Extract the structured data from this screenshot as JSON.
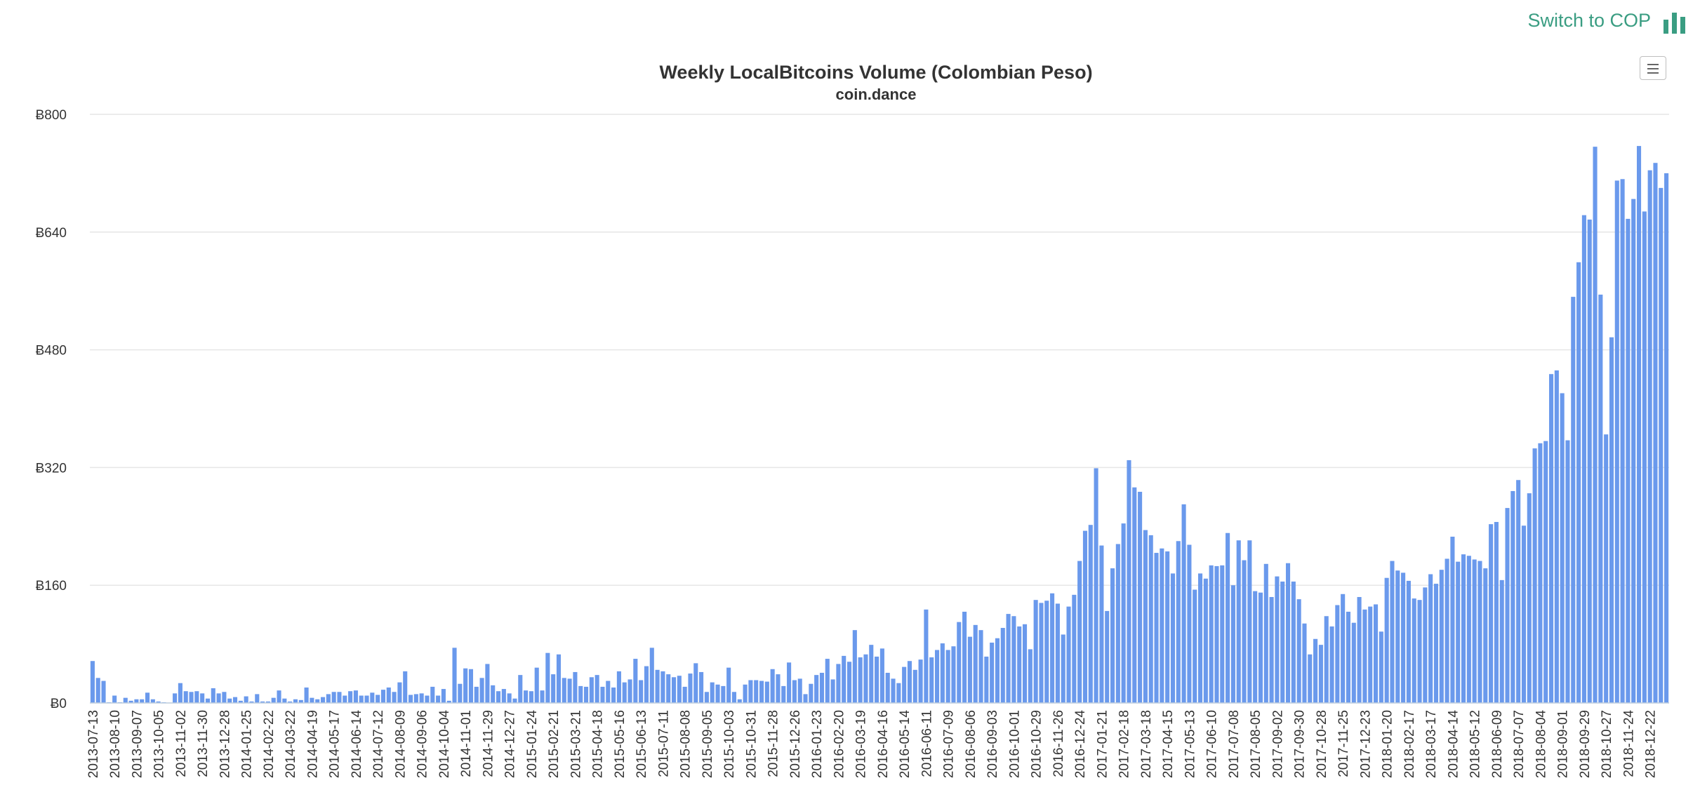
{
  "switch_link": {
    "label": "Switch to COP",
    "color": "#3a9d82"
  },
  "icons": {
    "switch": "bar-chart-icon",
    "menu": "hamburger-menu-icon"
  },
  "chart_data": {
    "type": "bar",
    "title": "Weekly LocalBitcoins Volume (Colombian Peso)",
    "subtitle": "coin.dance",
    "xlabel": "",
    "ylabel": "",
    "y_prefix": "Ƀ",
    "ylim": [
      0,
      800
    ],
    "yticks": [
      0,
      160,
      320,
      480,
      640,
      800
    ],
    "grid": true,
    "bar_color": "#6a99ec",
    "start_date": "2013-07-13",
    "step_days": 7,
    "tick_every": 4,
    "values": [
      57,
      34,
      30,
      1,
      10,
      1,
      7,
      3,
      5,
      5,
      14,
      5,
      2,
      1,
      0,
      13,
      27,
      16,
      15,
      16,
      13,
      6,
      20,
      13,
      15,
      6,
      8,
      3,
      9,
      2,
      12,
      2,
      2,
      7,
      17,
      6,
      2,
      5,
      4,
      21,
      7,
      5,
      8,
      12,
      15,
      15,
      10,
      16,
      17,
      10,
      10,
      14,
      11,
      18,
      21,
      15,
      28,
      43,
      11,
      12,
      13,
      10,
      22,
      10,
      19,
      3,
      75,
      26,
      47,
      46,
      22,
      34,
      53,
      24,
      16,
      19,
      13,
      6,
      38,
      17,
      16,
      48,
      17,
      68,
      39,
      66,
      34,
      33,
      42,
      23,
      22,
      35,
      38,
      22,
      30,
      21,
      43,
      28,
      32,
      60,
      31,
      50,
      75,
      45,
      43,
      39,
      35,
      37,
      22,
      40,
      54,
      42,
      15,
      28,
      25,
      23,
      48,
      15,
      5,
      25,
      31,
      31,
      30,
      29,
      46,
      39,
      23,
      55,
      31,
      33,
      12,
      26,
      38,
      41,
      60,
      32,
      53,
      64,
      56,
      99,
      62,
      66,
      79,
      63,
      74,
      41,
      33,
      27,
      49,
      57,
      45,
      59,
      127,
      62,
      72,
      81,
      72,
      77,
      110,
      124,
      90,
      106,
      99,
      63,
      82,
      88,
      102,
      121,
      118,
      104,
      107,
      73,
      140,
      136,
      139,
      149,
      135,
      93,
      131,
      147,
      193,
      234,
      242,
      319,
      214,
      125,
      183,
      216,
      244,
      330,
      293,
      287,
      235,
      228,
      204,
      210,
      206,
      176,
      220,
      270,
      215,
      154,
      176,
      169,
      187,
      186,
      187,
      231,
      160,
      221,
      194,
      221,
      152,
      150,
      189,
      144,
      172,
      165,
      190,
      165,
      141,
      108,
      66,
      87,
      79,
      118,
      104,
      133,
      148,
      124,
      109,
      144,
      127,
      131,
      134,
      97,
      170,
      193,
      180,
      177,
      166,
      142,
      140,
      157,
      175,
      162,
      181,
      196,
      226,
      192,
      202,
      200,
      195,
      193,
      183,
      243,
      246,
      167,
      265,
      288,
      303,
      241,
      285,
      346,
      353,
      356,
      447,
      452,
      421,
      357,
      552,
      599,
      663,
      657,
      756,
      555,
      365,
      497,
      710,
      712,
      658,
      685,
      757,
      668,
      724,
      734,
      700,
      720
    ]
  }
}
